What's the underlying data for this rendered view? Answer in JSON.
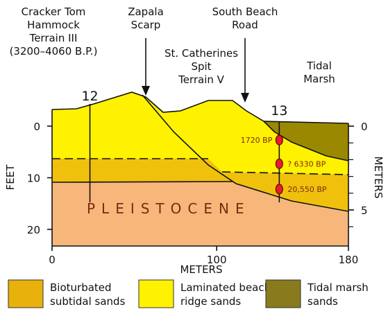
{
  "annotations": {
    "cracker_tom": [
      "Cracker Tom",
      "Hammock",
      "Terrain III",
      "(3200–4060 B.P.)"
    ],
    "zapala": [
      "Zapala",
      "Scarp"
    ],
    "south_beach": [
      "South Beach",
      "Road"
    ],
    "st_catherines": [
      "St. Catherines",
      "Spit",
      "Terrain V"
    ],
    "tidal_marsh": [
      "Tidal",
      "Marsh"
    ],
    "pleistocene": "PLEISTOCENE"
  },
  "cores": [
    {
      "label": "12",
      "x": 23
    },
    {
      "label": "13",
      "x": 138,
      "dates": [
        "1720 BP",
        "? 6330 BP",
        "20,550 BP"
      ],
      "depths": [
        2.7,
        7.3,
        12.2
      ]
    }
  ],
  "axes": {
    "left_label": "FEET",
    "right_label": "METERS",
    "bottom_label": "METERS",
    "feet_ticks": [
      0,
      10,
      20
    ],
    "meter_ticks": [
      0,
      5
    ],
    "x_ticks": [
      0,
      100,
      180
    ]
  },
  "legend": [
    {
      "lines": [
        "Bioturbated",
        "subtidal sands"
      ],
      "color": "#e8b10c"
    },
    {
      "lines": [
        "Laminated beach",
        "ridge sands"
      ],
      "color": "#fff200"
    },
    {
      "lines": [
        "Tidal marsh",
        "sands"
      ],
      "color": "#8a7a1e"
    }
  ]
}
